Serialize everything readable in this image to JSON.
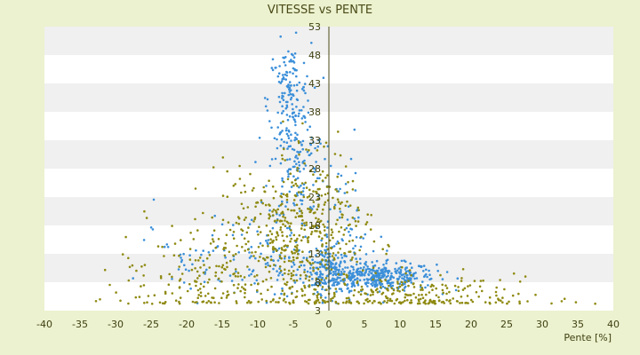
{
  "chart_data": {
    "type": "scatter",
    "title": "VITESSE vs PENTE",
    "xlabel": "Pente [%]",
    "ylabel": "",
    "xlim": [
      -40,
      40
    ],
    "ylim": [
      3,
      53
    ],
    "x_ticks": [
      "-40",
      "-35",
      "-30",
      "-25",
      "-20",
      "-15",
      "-10",
      "-5",
      "0",
      "5",
      "10",
      "15",
      "20",
      "25",
      "30",
      "35",
      "40"
    ],
    "y_ticks": [
      "3",
      "8",
      "13",
      "18",
      "23",
      "28",
      "33",
      "38",
      "43",
      "48",
      "53"
    ],
    "grid": "horizontal bands",
    "legend": "none",
    "colors": {
      "background": "#ecf2cf",
      "plot_band_light": "#ffffff",
      "plot_band_dark": "#f0f0f0",
      "series_blue": "#3b8fd9",
      "series_olive": "#8f8a12",
      "axis": "#4a4a18"
    },
    "series": [
      {
        "color": "#3b8fd9",
        "clusters": [
          {
            "x": 0.0,
            "y": 10.0,
            "sx": 1.5,
            "sy": 1.8,
            "n": 120
          },
          {
            "x": 7.0,
            "y": 9.0,
            "sx": 4.0,
            "sy": 1.2,
            "n": 360
          },
          {
            "x": -5.5,
            "y": 40.0,
            "sx": 1.5,
            "sy": 5.0,
            "n": 160
          },
          {
            "x": -4.5,
            "y": 28.0,
            "sx": 2.0,
            "sy": 5.0,
            "n": 110
          },
          {
            "x": -6.0,
            "y": 12.0,
            "sx": 6.0,
            "sy": 4.0,
            "n": 170
          },
          {
            "x": -20.0,
            "y": 12.0,
            "sx": 3.0,
            "sy": 3.0,
            "n": 30
          },
          {
            "x": 2.0,
            "y": 20.0,
            "sx": 1.5,
            "sy": 6.0,
            "n": 40
          }
        ]
      },
      {
        "color": "#8f8a12",
        "clusters": [
          {
            "x": -6.0,
            "y": 15.0,
            "sx": 6.0,
            "sy": 6.0,
            "n": 420
          },
          {
            "x": -2.0,
            "y": 22.0,
            "sx": 3.0,
            "sy": 5.0,
            "n": 110
          },
          {
            "x": 10.0,
            "y": 5.5,
            "sx": 8.0,
            "sy": 2.0,
            "n": 200
          },
          {
            "x": -20.0,
            "y": 8.0,
            "sx": 5.0,
            "sy": 4.0,
            "n": 90
          },
          {
            "x": 0.0,
            "y": 5.5,
            "sx": 20.0,
            "sy": 1.5,
            "n": 120
          }
        ]
      }
    ]
  }
}
